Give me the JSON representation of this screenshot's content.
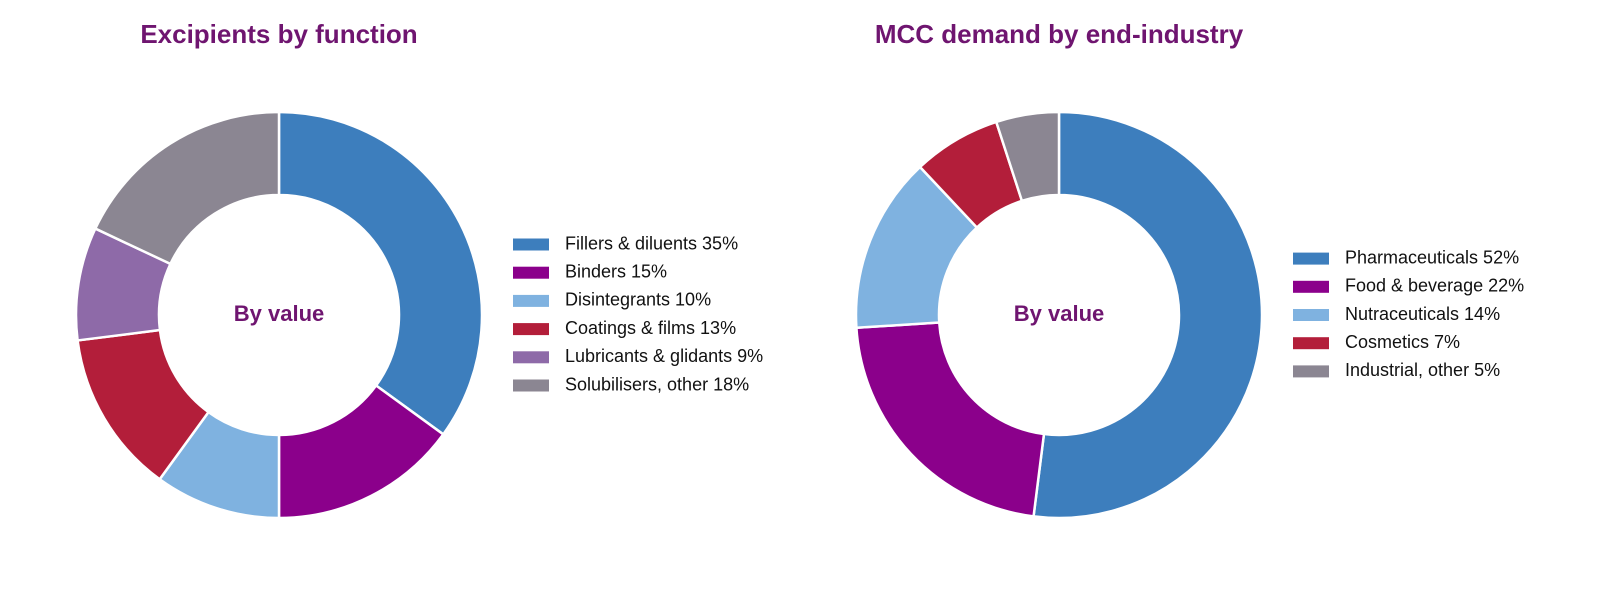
{
  "theme": {
    "title_color": "#6f1570",
    "slice_stroke": "#ffffff"
  },
  "chart_data": [
    {
      "type": "pie",
      "title": "Excipients by function",
      "center_label": "By value",
      "unit": "%",
      "legend_position": "right",
      "slices": [
        {
          "label": "Fillers & diluents 35%",
          "value": 35,
          "color": "#3d7ebd"
        },
        {
          "label": "Binders 15%",
          "value": 15,
          "color": "#8b008b"
        },
        {
          "label": "Disintegrants 10%",
          "value": 10,
          "color": "#7fb2e0"
        },
        {
          "label": "Coatings & films 13%",
          "value": 13,
          "color": "#b31e3a"
        },
        {
          "label": "Lubricants & glidants 9%",
          "value": 9,
          "color": "#8e6aa8"
        },
        {
          "label": "Solubilisers, other 18%",
          "value": 18,
          "color": "#8b8692"
        }
      ]
    },
    {
      "type": "pie",
      "title": "MCC demand by end-industry",
      "center_label": "By value",
      "unit": "%",
      "legend_position": "right",
      "slices": [
        {
          "label": "Pharmaceuticals 52%",
          "value": 52,
          "color": "#3d7ebd"
        },
        {
          "label": "Food & beverage 22%",
          "value": 22,
          "color": "#8b008b"
        },
        {
          "label": "Nutraceuticals 14%",
          "value": 14,
          "color": "#7fb2e0"
        },
        {
          "label": "Cosmetics 7%",
          "value": 7,
          "color": "#b31e3a"
        },
        {
          "label": "Industrial, other 5%",
          "value": 5,
          "color": "#8b8692"
        }
      ]
    }
  ]
}
